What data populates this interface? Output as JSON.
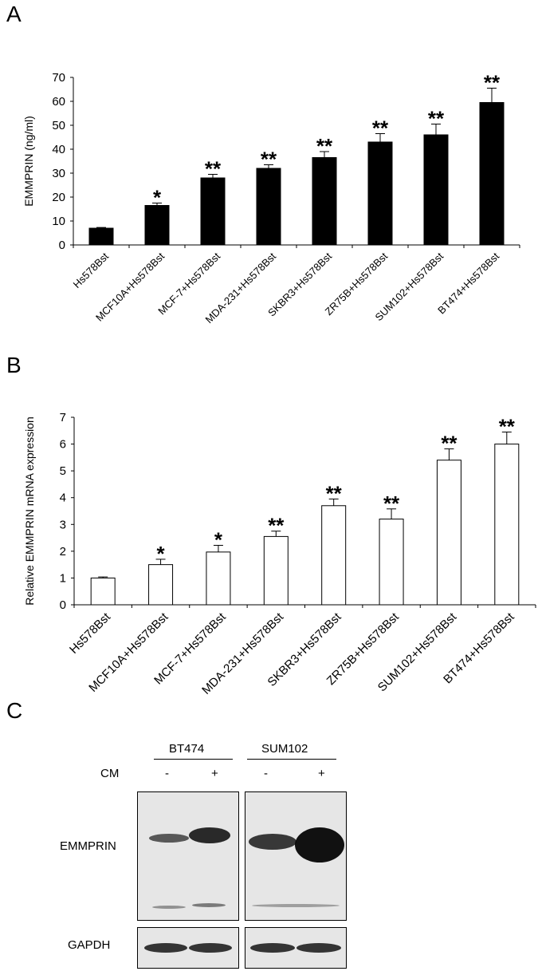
{
  "panels": {
    "a": "A",
    "b": "B",
    "c": "C"
  },
  "chart_data": [
    {
      "type": "bar",
      "panel": "A",
      "categories": [
        "Hs578Bst",
        "MCF10A+Hs578Bst",
        "MCF-7+Hs578Bst",
        "MDA-231+Hs578Bst",
        "SKBR3+Hs578Bst",
        "ZR75B+Hs578Bst",
        "SUM102+Hs578Bst",
        "BT474+Hs578Bst"
      ],
      "values": [
        7,
        16.5,
        28,
        32,
        36.5,
        43,
        46,
        59.5
      ],
      "errors": [
        0.3,
        1,
        1.5,
        1.5,
        2.5,
        3.5,
        4.5,
        6
      ],
      "significance": [
        "",
        "*",
        "**",
        "**",
        "**",
        "**",
        "**",
        "**"
      ],
      "ylabel": "EMMPRIN (ng/ml)",
      "ylim": [
        0,
        70
      ],
      "yticks": [
        0,
        10,
        20,
        30,
        40,
        50,
        60,
        70
      ],
      "bar_color": "#000000"
    },
    {
      "type": "bar",
      "panel": "B",
      "categories": [
        "Hs578Bst",
        "MCF10A+Hs578Bst",
        "MCF-7+Hs578Bst",
        "MDA-231+Hs578Bst",
        "SKBR3+Hs578Bst",
        "ZR75B+Hs578Bst",
        "SUM102+Hs578Bst",
        "BT474+Hs578Bst"
      ],
      "values": [
        1,
        1.5,
        1.97,
        2.55,
        3.7,
        3.2,
        5.4,
        6
      ],
      "errors": [
        0.04,
        0.2,
        0.25,
        0.2,
        0.25,
        0.38,
        0.42,
        0.45
      ],
      "significance": [
        "",
        "*",
        "*",
        "**",
        "**",
        "**",
        "**",
        "**"
      ],
      "ylabel": "Relative EMMPRIN mRNA expression",
      "ylim": [
        0,
        7
      ],
      "yticks": [
        0,
        1,
        2,
        3,
        4,
        5,
        6,
        7
      ],
      "bar_color": "#ffffff"
    }
  ],
  "blot": {
    "cell_lines": [
      "BT474",
      "SUM102"
    ],
    "cm_label": "CM",
    "lanes": [
      "-",
      "+",
      "-",
      "+"
    ],
    "rows": [
      {
        "label": "EMMPRIN",
        "relative_intensity": [
          0.45,
          0.75,
          0.55,
          1.0
        ]
      },
      {
        "label": "GAPDH",
        "relative_intensity": [
          0.55,
          0.55,
          0.55,
          0.55
        ]
      }
    ]
  }
}
